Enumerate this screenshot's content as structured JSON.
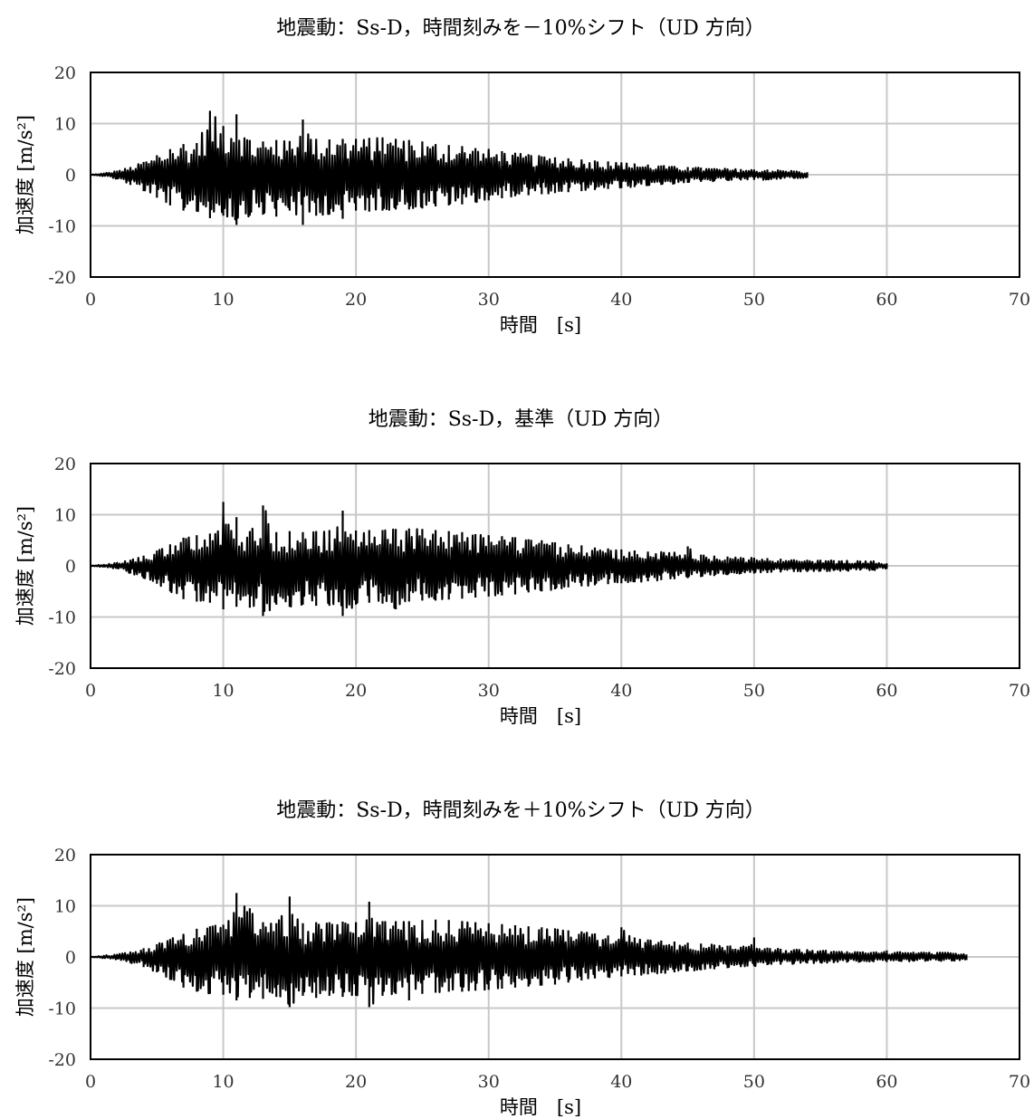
{
  "colors": {
    "series": "#000000",
    "grid": "#c8c8c8",
    "frame": "#000000"
  },
  "chart_data": [
    {
      "type": "line",
      "title": "地震動：Ss-D，時間刻みを－10%シフト（UD 方向）",
      "xlabel": "時間　[s]",
      "ylabel": "加速度 [m/s²]",
      "xlim": [
        0,
        70
      ],
      "ylim": [
        -20,
        20
      ],
      "xticks": [
        0,
        10,
        20,
        30,
        40,
        50,
        60,
        70
      ],
      "yticks": [
        -20,
        -10,
        0,
        10,
        20
      ],
      "grid": true,
      "legend": "none",
      "series": [
        {
          "x": [
            0,
            1,
            2,
            3,
            4,
            5,
            6,
            7,
            8,
            9,
            10,
            11,
            12,
            13,
            14,
            15,
            16,
            17,
            18,
            19,
            20,
            21,
            22,
            23,
            24,
            25,
            26,
            27,
            28,
            29,
            30,
            31,
            32,
            33,
            34,
            35,
            36,
            37,
            38,
            39,
            40,
            41,
            42,
            43,
            44,
            45,
            46,
            47,
            48,
            49,
            50,
            51,
            52,
            53,
            54
          ],
          "y_max": [
            0,
            0.3,
            0.8,
            1.5,
            2.5,
            3.8,
            5,
            6,
            6.2,
            12.5,
            9.5,
            11.8,
            6.8,
            6.5,
            6.8,
            6.6,
            10.8,
            7,
            6.9,
            7,
            7,
            7.2,
            7.3,
            7,
            6.8,
            6.5,
            6,
            5.8,
            5.6,
            5.2,
            5,
            4.6,
            4.2,
            4,
            3.6,
            3.4,
            3.2,
            3,
            2.8,
            2.6,
            2.4,
            2.2,
            2,
            1.8,
            1.6,
            1.5,
            1.4,
            1.3,
            1.2,
            1.1,
            1,
            1,
            0.9,
            0.8,
            0.5
          ],
          "y_min": [
            0,
            -0.3,
            -0.9,
            -2,
            -3.2,
            -4.5,
            -6,
            -7,
            -7.2,
            -8.5,
            -8,
            -9.8,
            -8,
            -7.8,
            -8.2,
            -7,
            -9.8,
            -8,
            -7.8,
            -8.6,
            -7,
            -7.2,
            -7,
            -6.8,
            -6.8,
            -6.6,
            -6.2,
            -6,
            -5.8,
            -5.4,
            -5,
            -4.6,
            -4.2,
            -4,
            -3.8,
            -3.6,
            -3.4,
            -3.2,
            -3,
            -2.8,
            -2.6,
            -2.4,
            -2.2,
            -2,
            -1.8,
            -1.6,
            -1.4,
            -1.3,
            -1.2,
            -1.1,
            -1,
            -1,
            -0.9,
            -0.8,
            -0.6
          ]
        }
      ]
    },
    {
      "type": "line",
      "title": "地震動：Ss-D，基準（UD 方向）",
      "xlabel": "時間　[s]",
      "ylabel": "加速度 [m/s²]",
      "xlim": [
        0,
        70
      ],
      "ylim": [
        -20,
        20
      ],
      "xticks": [
        0,
        10,
        20,
        30,
        40,
        50,
        60,
        70
      ],
      "yticks": [
        -20,
        -10,
        0,
        10,
        20
      ],
      "grid": true,
      "legend": "none",
      "series": [
        {
          "x": [
            0,
            1,
            2,
            3,
            4,
            5,
            6,
            7,
            8,
            9,
            10,
            11,
            12,
            13,
            14,
            15,
            16,
            17,
            18,
            19,
            20,
            21,
            22,
            23,
            24,
            25,
            26,
            27,
            28,
            29,
            30,
            31,
            32,
            33,
            34,
            35,
            36,
            37,
            38,
            39,
            40,
            41,
            42,
            43,
            44,
            45,
            46,
            47,
            48,
            49,
            50,
            51,
            52,
            53,
            54,
            55,
            56,
            57,
            58,
            59,
            60
          ],
          "y_max": [
            0,
            0.3,
            0.6,
            1.2,
            2,
            3,
            4.2,
            5.5,
            6,
            6.3,
            12.5,
            9.5,
            6.8,
            11.8,
            6.6,
            6.8,
            6.6,
            6.8,
            7,
            10.8,
            6.9,
            7,
            7,
            7.2,
            7.3,
            7.2,
            7,
            6.8,
            6.6,
            6.2,
            6,
            5.8,
            5.6,
            5.2,
            5,
            4.6,
            4.2,
            4,
            3.6,
            3.4,
            3.2,
            3,
            2.8,
            2.7,
            2.6,
            3.8,
            2.2,
            2,
            1.8,
            1.7,
            1.6,
            1.5,
            1.4,
            1.3,
            1.2,
            1.2,
            1.1,
            1,
            1,
            0.9,
            0.5
          ],
          "y_min": [
            0,
            -0.3,
            -0.6,
            -1.5,
            -2.5,
            -3.5,
            -5,
            -6.5,
            -7,
            -7.2,
            -8.5,
            -8,
            -8.2,
            -9.8,
            -7.6,
            -8,
            -7.6,
            -7.8,
            -7.8,
            -9.8,
            -7.6,
            -7.2,
            -7.4,
            -8.5,
            -7,
            -6.8,
            -6.8,
            -6.6,
            -6.4,
            -6.2,
            -6,
            -5.8,
            -5.6,
            -5.2,
            -5,
            -4.6,
            -4.2,
            -4,
            -3.8,
            -3.6,
            -3.4,
            -3.2,
            -3,
            -2.8,
            -2.6,
            -2.4,
            -2.2,
            -2,
            -1.8,
            -1.6,
            -1.5,
            -1.4,
            -1.3,
            -1.2,
            -1.2,
            -1.1,
            -1,
            -1,
            -0.9,
            -0.9,
            -0.6
          ]
        }
      ]
    },
    {
      "type": "line",
      "title": "地震動：Ss-D，時間刻みを＋10%シフト（UD 方向）",
      "xlabel": "時間　[s]",
      "ylabel": "加速度 [m/s²]",
      "xlim": [
        0,
        70
      ],
      "ylim": [
        -20,
        20
      ],
      "xticks": [
        0,
        10,
        20,
        30,
        40,
        50,
        60,
        70
      ],
      "yticks": [
        -20,
        -10,
        0,
        10,
        20
      ],
      "grid": true,
      "legend": "none",
      "series": [
        {
          "x": [
            0,
            1,
            2,
            3,
            4,
            5,
            6,
            7,
            8,
            9,
            10,
            11,
            12,
            13,
            14,
            15,
            16,
            17,
            18,
            19,
            20,
            21,
            22,
            23,
            24,
            25,
            26,
            27,
            28,
            29,
            30,
            31,
            32,
            33,
            34,
            35,
            36,
            37,
            38,
            39,
            40,
            41,
            42,
            43,
            44,
            45,
            46,
            47,
            48,
            49,
            50,
            51,
            52,
            53,
            54,
            55,
            56,
            57,
            58,
            59,
            60,
            61,
            62,
            63,
            64,
            65,
            66
          ],
          "y_max": [
            0,
            0.3,
            0.5,
            1,
            1.7,
            2.5,
            3.5,
            4.5,
            5.5,
            6,
            6.3,
            12.5,
            9.5,
            6.8,
            6.6,
            11.8,
            6.6,
            6.8,
            6.8,
            6.9,
            6.8,
            10.8,
            7,
            7,
            7,
            7.2,
            7.3,
            7.2,
            7,
            6.8,
            6.6,
            6.4,
            6.2,
            6,
            5.8,
            5.6,
            5.2,
            5,
            4.6,
            4.2,
            5.8,
            3.8,
            3.4,
            3.2,
            3,
            2.8,
            2.6,
            2.4,
            2.2,
            2,
            3.8,
            1.8,
            1.6,
            1.5,
            1.4,
            1.3,
            1.2,
            1.1,
            1,
            1,
            1.3,
            1.1,
            1,
            0.9,
            0.9,
            0.8,
            0.5
          ],
          "y_min": [
            0,
            -0.3,
            -0.5,
            -1.2,
            -2,
            -3,
            -4.5,
            -6,
            -6.8,
            -7.2,
            -7.4,
            -8.5,
            -8,
            -8.2,
            -7.8,
            -9.8,
            -7.6,
            -8,
            -7.6,
            -7.8,
            -7.6,
            -9.8,
            -7.6,
            -7.2,
            -8.5,
            -7.2,
            -7,
            -6.8,
            -6.8,
            -6.6,
            -6.4,
            -6.2,
            -6,
            -5.8,
            -5.6,
            -5.4,
            -5,
            -4.6,
            -4.2,
            -4,
            -3.8,
            -3.6,
            -3.4,
            -3.2,
            -3,
            -2.8,
            -2.6,
            -2.4,
            -2.2,
            -2,
            -1.8,
            -1.6,
            -1.5,
            -1.4,
            -1.3,
            -1.2,
            -1.2,
            -1.1,
            -1,
            -1,
            -1,
            -0.9,
            -0.9,
            -0.8,
            -0.8,
            -0.8,
            -0.6
          ]
        }
      ]
    }
  ]
}
